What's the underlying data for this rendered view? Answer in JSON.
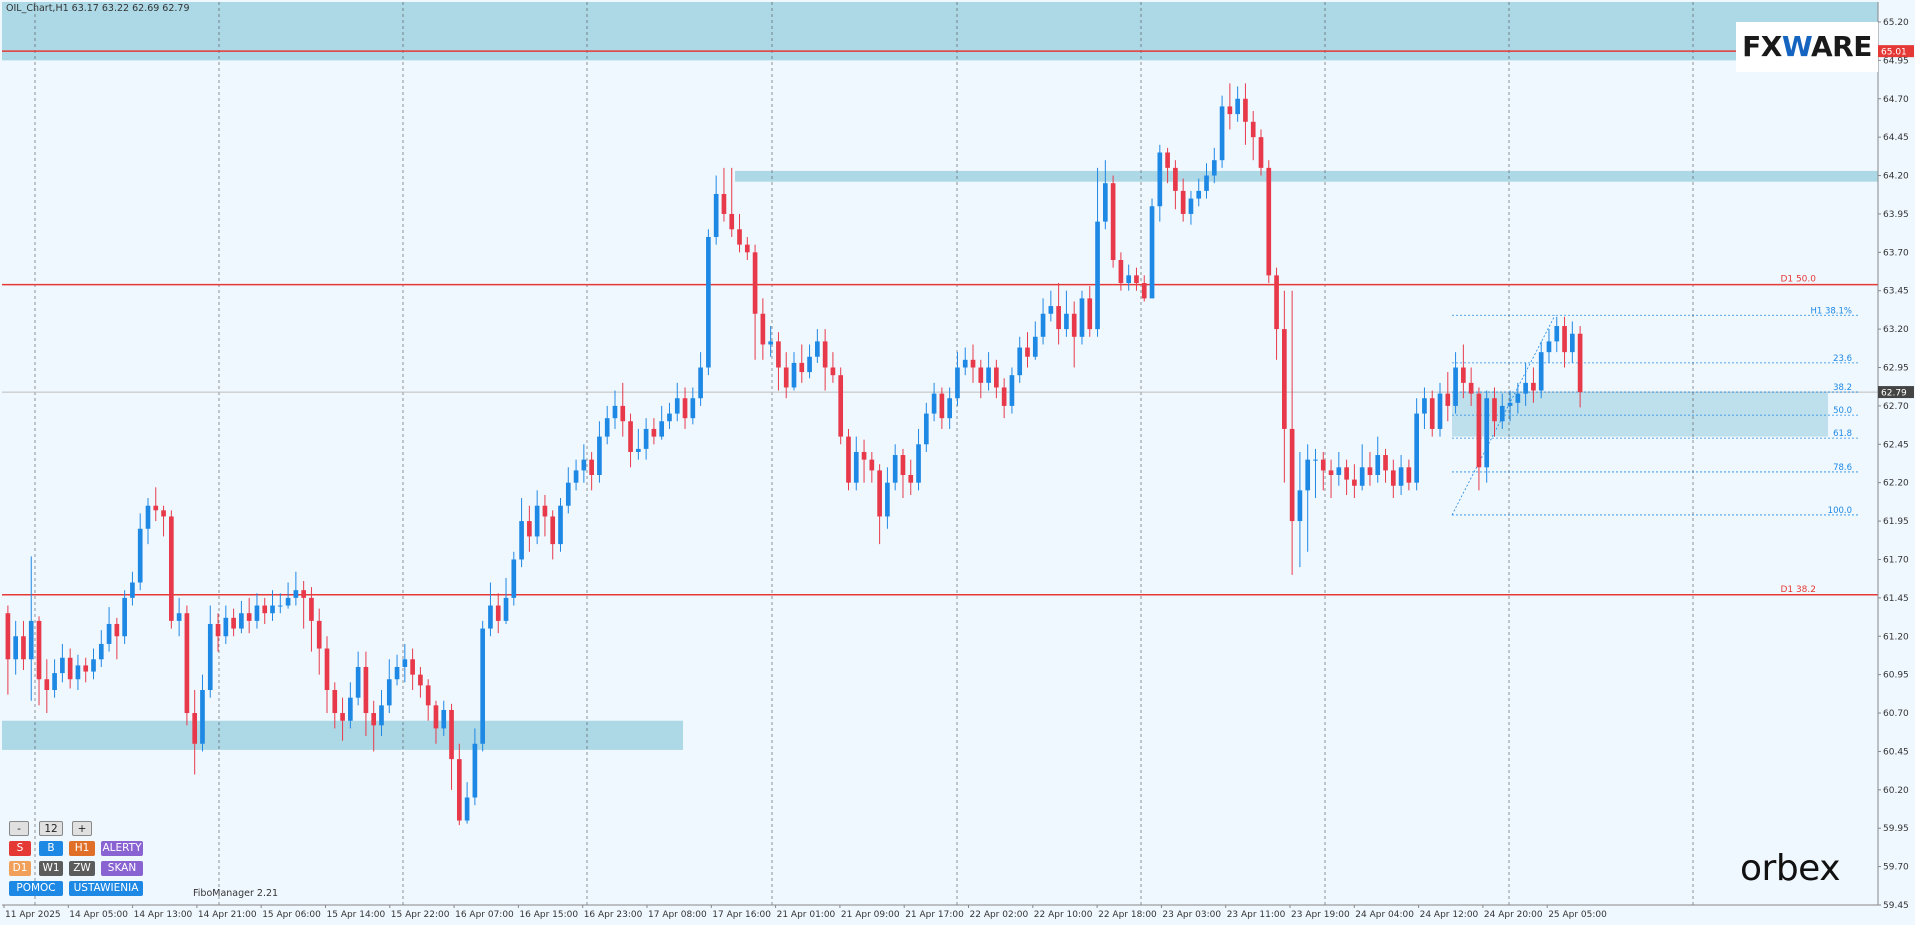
{
  "chart_title": "OIL_Chart,H1  63.17 63.22 62.69 62.79",
  "logos": {
    "top": "FXWARE",
    "bottom": "orbex"
  },
  "fibo_manager_label": "FiboManager 2.21",
  "controls": {
    "minus": "-",
    "value": "12",
    "plus": "+",
    "row1": [
      "S",
      "B",
      "H1",
      "ALERTY"
    ],
    "row2": [
      "D1",
      "W1",
      "ZW",
      "SKAN"
    ],
    "row3": [
      "POMOC",
      "USTAWIENIA"
    ]
  },
  "colors": {
    "background": "#f0f8ff",
    "bull": "#1e88e5",
    "bear": "#e8394a",
    "zone": "#add8e6",
    "level_line": "#e53935",
    "grid": "#555555",
    "btn_red": "#e53935",
    "btn_blue": "#1e88e5",
    "btn_orange": "#e07028",
    "btn_purple": "#8a63d2",
    "btn_dark": "#5c5c5c",
    "btn_lightorange": "#f0a05a"
  },
  "chart_data": {
    "type": "candlestick",
    "symbol": "OIL",
    "timeframe": "H1",
    "ylim": [
      59.45,
      65.33
    ],
    "y_ticks": [
      "65.20",
      "64.95",
      "64.70",
      "64.45",
      "64.20",
      "63.95",
      "63.70",
      "63.45",
      "63.20",
      "62.95",
      "62.70",
      "62.45",
      "62.20",
      "61.95",
      "61.70",
      "61.45",
      "61.20",
      "60.95",
      "60.70",
      "60.45",
      "60.20",
      "59.95",
      "59.70",
      "59.45"
    ],
    "x_tick_labels": [
      "11 Apr 2025",
      "14 Apr 05:00",
      "14 Apr 13:00",
      "14 Apr 21:00",
      "15 Apr 06:00",
      "15 Apr 14:00",
      "15 Apr 22:00",
      "16 Apr 07:00",
      "16 Apr 15:00",
      "16 Apr 23:00",
      "17 Apr 08:00",
      "17 Apr 16:00",
      "21 Apr 01:00",
      "21 Apr 09:00",
      "21 Apr 17:00",
      "22 Apr 02:00",
      "22 Apr 10:00",
      "22 Apr 18:00",
      "23 Apr 03:00",
      "23 Apr 11:00",
      "23 Apr 19:00",
      "24 Apr 04:00",
      "24 Apr 12:00",
      "24 Apr 20:00",
      "25 Apr 05:00"
    ],
    "current_price": "62.79",
    "horizontal_lines": [
      {
        "label": "",
        "price": 65.01,
        "price_label": "65.01"
      },
      {
        "label": "D1 50.0",
        "price": 63.49
      },
      {
        "label": "D1 38.2",
        "price": 61.47
      }
    ],
    "zones": [
      {
        "from_price": 64.95,
        "to_price": 65.33,
        "span": "full"
      },
      {
        "from_price": 64.16,
        "to_price": 64.23,
        "span": "from 17 Apr 16:00"
      },
      {
        "from_price": 60.46,
        "to_price": 60.65,
        "span": "11 Apr to 16 Apr 15:00"
      },
      {
        "from_price": 62.5,
        "to_price": 62.79,
        "span": "24 Apr 12:00 onward"
      }
    ],
    "fibonacci": {
      "high": 63.29,
      "low": 61.99,
      "levels": [
        {
          "label": "H1 38.1%",
          "price": 63.29
        },
        {
          "label": "23.6",
          "price": 62.98
        },
        {
          "label": "38.2",
          "price": 62.79
        },
        {
          "label": "50.0",
          "price": 62.64
        },
        {
          "label": "61.8",
          "price": 62.49
        },
        {
          "label": "78.6",
          "price": 62.27
        },
        {
          "label": "100.0",
          "price": 61.99
        }
      ]
    },
    "candles": [
      [
        61.35,
        61.05,
        61.4,
        60.82
      ],
      [
        61.05,
        61.2,
        61.3,
        60.95
      ],
      [
        61.2,
        61.05,
        61.3,
        60.98
      ],
      [
        61.05,
        61.3,
        61.72,
        60.78
      ],
      [
        61.3,
        60.92,
        61.33,
        60.75
      ],
      [
        60.92,
        60.85,
        61.05,
        60.7
      ],
      [
        60.85,
        60.96,
        61.05,
        60.8
      ],
      [
        60.96,
        61.06,
        61.15,
        60.9
      ],
      [
        61.06,
        60.92,
        61.12,
        60.86
      ],
      [
        60.92,
        61.01,
        61.08,
        60.85
      ],
      [
        61.01,
        60.97,
        61.06,
        60.9
      ],
      [
        60.97,
        61.05,
        61.12,
        60.92
      ],
      [
        61.05,
        61.15,
        61.24,
        61.0
      ],
      [
        61.15,
        61.28,
        61.39,
        61.1
      ],
      [
        61.28,
        61.2,
        61.32,
        61.05
      ],
      [
        61.2,
        61.45,
        61.5,
        61.15
      ],
      [
        61.45,
        61.55,
        61.62,
        61.4
      ],
      [
        61.55,
        61.9,
        62.0,
        61.5
      ],
      [
        61.9,
        62.05,
        62.1,
        61.8
      ],
      [
        62.05,
        62.02,
        62.17,
        61.95
      ],
      [
        62.02,
        61.98,
        62.05,
        61.85
      ],
      [
        61.98,
        61.3,
        62.02,
        61.25
      ],
      [
        61.3,
        61.35,
        61.45,
        61.2
      ],
      [
        61.35,
        60.7,
        61.4,
        60.62
      ],
      [
        60.7,
        60.5,
        60.85,
        60.3
      ],
      [
        60.5,
        60.85,
        60.95,
        60.45
      ],
      [
        60.85,
        61.28,
        61.4,
        60.8
      ],
      [
        61.28,
        61.2,
        61.35,
        61.1
      ],
      [
        61.2,
        61.32,
        61.4,
        61.15
      ],
      [
        61.32,
        61.25,
        61.38,
        61.2
      ],
      [
        61.25,
        61.35,
        61.43,
        61.22
      ],
      [
        61.35,
        61.3,
        61.45,
        61.22
      ],
      [
        61.3,
        61.4,
        61.48,
        61.25
      ],
      [
        61.4,
        61.35,
        61.45,
        61.28
      ],
      [
        61.35,
        61.4,
        61.5,
        61.3
      ],
      [
        61.4,
        61.4,
        61.48,
        61.35
      ],
      [
        61.4,
        61.45,
        61.55,
        61.38
      ],
      [
        61.45,
        61.5,
        61.62,
        61.4
      ],
      [
        61.5,
        61.45,
        61.56,
        61.25
      ],
      [
        61.45,
        61.3,
        61.52,
        61.1
      ],
      [
        61.3,
        61.12,
        61.38,
        60.95
      ],
      [
        61.12,
        60.85,
        61.2,
        60.7
      ],
      [
        60.85,
        60.7,
        60.9,
        60.6
      ],
      [
        60.7,
        60.65,
        60.8,
        60.52
      ],
      [
        60.65,
        60.8,
        60.9,
        60.6
      ],
      [
        60.8,
        61.0,
        61.1,
        60.75
      ],
      [
        61.0,
        60.7,
        61.1,
        60.55
      ],
      [
        60.7,
        60.62,
        60.78,
        60.45
      ],
      [
        60.62,
        60.75,
        60.85,
        60.55
      ],
      [
        60.75,
        60.92,
        61.05,
        60.7
      ],
      [
        60.92,
        61.0,
        61.08,
        60.88
      ],
      [
        61.0,
        61.05,
        61.15,
        60.9
      ],
      [
        61.05,
        60.95,
        61.12,
        60.85
      ],
      [
        60.95,
        60.88,
        61.0,
        60.8
      ],
      [
        60.88,
        60.75,
        60.92,
        60.65
      ],
      [
        60.75,
        60.6,
        60.78,
        60.5
      ],
      [
        60.6,
        60.72,
        60.78,
        60.55
      ],
      [
        60.72,
        60.4,
        60.76,
        60.2
      ],
      [
        60.4,
        60.0,
        60.5,
        59.97
      ],
      [
        60.0,
        60.15,
        60.25,
        59.98
      ],
      [
        60.15,
        60.5,
        60.6,
        60.1
      ],
      [
        60.5,
        61.25,
        61.3,
        60.45
      ],
      [
        61.25,
        61.4,
        61.55,
        61.2
      ],
      [
        61.4,
        61.3,
        61.48,
        61.22
      ],
      [
        61.3,
        61.45,
        61.58,
        61.28
      ],
      [
        61.45,
        61.7,
        61.75,
        61.4
      ],
      [
        61.7,
        61.95,
        62.1,
        61.65
      ],
      [
        61.95,
        61.85,
        62.05,
        61.75
      ],
      [
        61.85,
        62.05,
        62.15,
        61.8
      ],
      [
        62.05,
        61.98,
        62.12,
        61.85
      ],
      [
        61.98,
        61.8,
        62.02,
        61.7
      ],
      [
        61.8,
        62.05,
        62.1,
        61.75
      ],
      [
        62.05,
        62.2,
        62.3,
        62.0
      ],
      [
        62.2,
        62.28,
        62.35,
        62.15
      ],
      [
        62.28,
        62.35,
        62.45,
        62.2
      ],
      [
        62.35,
        62.25,
        62.4,
        62.15
      ],
      [
        62.25,
        62.5,
        62.6,
        62.2
      ],
      [
        62.5,
        62.62,
        62.7,
        62.45
      ],
      [
        62.62,
        62.7,
        62.8,
        62.55
      ],
      [
        62.7,
        62.6,
        62.85,
        62.5
      ],
      [
        62.6,
        62.4,
        62.65,
        62.3
      ],
      [
        62.4,
        62.42,
        62.55,
        62.35
      ],
      [
        62.42,
        62.55,
        62.62,
        62.35
      ],
      [
        62.55,
        62.5,
        62.62,
        62.45
      ],
      [
        62.5,
        62.6,
        62.7,
        62.48
      ],
      [
        62.6,
        62.65,
        62.72,
        62.55
      ],
      [
        62.65,
        62.75,
        62.85,
        62.6
      ],
      [
        62.75,
        62.62,
        62.82,
        62.55
      ],
      [
        62.62,
        62.75,
        62.82,
        62.58
      ],
      [
        62.75,
        62.95,
        63.05,
        62.7
      ],
      [
        62.95,
        63.8,
        63.85,
        62.9
      ],
      [
        63.8,
        64.08,
        64.2,
        63.75
      ],
      [
        64.08,
        63.95,
        64.25,
        63.9
      ],
      [
        63.95,
        63.85,
        64.25,
        63.8
      ],
      [
        63.85,
        63.75,
        63.95,
        63.7
      ],
      [
        63.75,
        63.7,
        63.8,
        63.65
      ],
      [
        63.7,
        63.3,
        63.75,
        63.0
      ],
      [
        63.3,
        63.1,
        63.4,
        63.0
      ],
      [
        63.1,
        63.12,
        63.22,
        63.02
      ],
      [
        63.12,
        62.95,
        63.18,
        62.8
      ],
      [
        62.95,
        62.82,
        63.05,
        62.75
      ],
      [
        62.82,
        62.98,
        63.05,
        62.8
      ],
      [
        62.98,
        62.92,
        63.1,
        62.85
      ],
      [
        62.92,
        63.02,
        63.1,
        62.88
      ],
      [
        63.02,
        63.12,
        63.2,
        62.98
      ],
      [
        63.12,
        62.95,
        63.2,
        62.8
      ],
      [
        62.95,
        62.9,
        63.05,
        62.85
      ],
      [
        62.9,
        62.5,
        62.95,
        62.45
      ],
      [
        62.5,
        62.2,
        62.55,
        62.15
      ],
      [
        62.2,
        62.4,
        62.5,
        62.15
      ],
      [
        62.4,
        62.35,
        62.48,
        62.2
      ],
      [
        62.35,
        62.28,
        62.4,
        62.2
      ],
      [
        62.28,
        61.98,
        62.32,
        61.8
      ],
      [
        61.98,
        62.2,
        62.3,
        61.9
      ],
      [
        62.2,
        62.38,
        62.45,
        62.15
      ],
      [
        62.38,
        62.25,
        62.42,
        62.1
      ],
      [
        62.25,
        62.2,
        62.35,
        62.12
      ],
      [
        62.2,
        62.45,
        62.55,
        62.15
      ],
      [
        62.45,
        62.65,
        62.72,
        62.4
      ],
      [
        62.65,
        62.78,
        62.85,
        62.6
      ],
      [
        62.78,
        62.62,
        62.82,
        62.55
      ],
      [
        62.62,
        62.75,
        62.82,
        62.55
      ],
      [
        62.75,
        62.95,
        63.05,
        62.7
      ],
      [
        62.95,
        63.0,
        63.08,
        62.9
      ],
      [
        63.0,
        62.95,
        63.1,
        62.85
      ],
      [
        62.95,
        62.85,
        63.0,
        62.75
      ],
      [
        62.85,
        62.95,
        63.05,
        62.8
      ],
      [
        62.95,
        62.82,
        63.0,
        62.75
      ],
      [
        62.82,
        62.7,
        62.88,
        62.62
      ],
      [
        62.7,
        62.9,
        62.95,
        62.65
      ],
      [
        62.9,
        63.08,
        63.15,
        62.85
      ],
      [
        63.08,
        63.02,
        63.18,
        62.95
      ],
      [
        63.02,
        63.15,
        63.25,
        63.0
      ],
      [
        63.15,
        63.3,
        63.4,
        63.1
      ],
      [
        63.3,
        63.35,
        63.45,
        63.25
      ],
      [
        63.35,
        63.2,
        63.5,
        63.1
      ],
      [
        63.2,
        63.3,
        63.45,
        63.15
      ],
      [
        63.3,
        63.15,
        63.38,
        62.95
      ],
      [
        63.15,
        63.4,
        63.45,
        63.1
      ],
      [
        63.4,
        63.2,
        63.48,
        63.15
      ],
      [
        63.2,
        63.9,
        64.25,
        63.15
      ],
      [
        63.9,
        64.15,
        64.3,
        63.85
      ],
      [
        64.15,
        63.65,
        64.2,
        63.6
      ],
      [
        63.65,
        63.5,
        63.7,
        63.45
      ],
      [
        63.5,
        63.55,
        63.62,
        63.45
      ],
      [
        63.55,
        63.5,
        63.6,
        63.45
      ],
      [
        63.5,
        63.4,
        63.55,
        63.38
      ],
      [
        63.4,
        64.0,
        64.05,
        63.75
      ],
      [
        64.0,
        64.35,
        64.4,
        63.9
      ],
      [
        64.35,
        64.25,
        64.38,
        64.15
      ],
      [
        64.25,
        64.1,
        64.3,
        63.98
      ],
      [
        64.1,
        63.95,
        64.18,
        63.9
      ],
      [
        63.95,
        64.05,
        64.1,
        63.88
      ],
      [
        64.05,
        64.1,
        64.18,
        64.0
      ],
      [
        64.1,
        64.2,
        64.28,
        64.05
      ],
      [
        64.2,
        64.3,
        64.38,
        64.15
      ],
      [
        64.3,
        64.65,
        64.72,
        64.25
      ],
      [
        64.65,
        64.6,
        64.8,
        64.5
      ],
      [
        64.6,
        64.7,
        64.78,
        64.55
      ],
      [
        64.7,
        64.55,
        64.8,
        64.4
      ],
      [
        64.55,
        64.45,
        64.62,
        64.3
      ],
      [
        64.45,
        64.25,
        64.5,
        64.2
      ],
      [
        64.25,
        63.55,
        64.3,
        63.5
      ],
      [
        63.55,
        63.2,
        63.6,
        63.0
      ],
      [
        63.2,
        62.55,
        63.45,
        62.2
      ],
      [
        62.55,
        61.95,
        63.45,
        61.6
      ],
      [
        61.95,
        62.15,
        62.4,
        61.65
      ],
      [
        62.15,
        62.35,
        62.45,
        61.75
      ],
      [
        62.35,
        62.35,
        62.42,
        62.1
      ],
      [
        62.35,
        62.28,
        62.4,
        62.15
      ],
      [
        62.28,
        62.25,
        62.35,
        62.1
      ],
      [
        62.25,
        62.3,
        62.4,
        62.18
      ],
      [
        62.3,
        62.22,
        62.35,
        62.12
      ],
      [
        62.22,
        62.18,
        62.32,
        62.1
      ],
      [
        62.18,
        62.3,
        62.45,
        62.15
      ],
      [
        62.3,
        62.25,
        62.4,
        62.18
      ],
      [
        62.25,
        62.38,
        62.5,
        62.2
      ],
      [
        62.38,
        62.28,
        62.42,
        62.2
      ],
      [
        62.28,
        62.18,
        62.35,
        62.1
      ],
      [
        62.18,
        62.3,
        62.38,
        62.12
      ],
      [
        62.3,
        62.2,
        62.35,
        62.15
      ],
      [
        62.2,
        62.65,
        62.75,
        62.15
      ],
      [
        62.65,
        62.75,
        62.82,
        62.55
      ],
      [
        62.75,
        62.55,
        62.8,
        62.5
      ],
      [
        62.55,
        62.78,
        62.85,
        62.5
      ],
      [
        62.78,
        62.7,
        62.92,
        62.6
      ],
      [
        62.7,
        62.95,
        63.05,
        62.65
      ],
      [
        62.95,
        62.85,
        63.1,
        62.75
      ],
      [
        62.85,
        62.78,
        62.95,
        62.7
      ],
      [
        62.78,
        62.3,
        62.82,
        62.15
      ],
      [
        62.3,
        62.75,
        62.8,
        62.2
      ],
      [
        62.75,
        62.6,
        62.82,
        62.5
      ],
      [
        62.6,
        62.7,
        62.78,
        62.55
      ],
      [
        62.7,
        62.72,
        62.8,
        62.6
      ],
      [
        62.72,
        62.78,
        62.85,
        62.65
      ],
      [
        62.78,
        62.85,
        62.98,
        62.7
      ],
      [
        62.85,
        62.8,
        62.95,
        62.72
      ],
      [
        62.8,
        63.05,
        63.12,
        62.75
      ],
      [
        63.05,
        63.12,
        63.2,
        62.98
      ],
      [
        63.12,
        63.22,
        63.28,
        63.05
      ],
      [
        63.22,
        63.05,
        63.28,
        62.95
      ],
      [
        63.05,
        63.17,
        63.25,
        62.98
      ],
      [
        63.17,
        62.79,
        63.22,
        62.69
      ]
    ]
  }
}
